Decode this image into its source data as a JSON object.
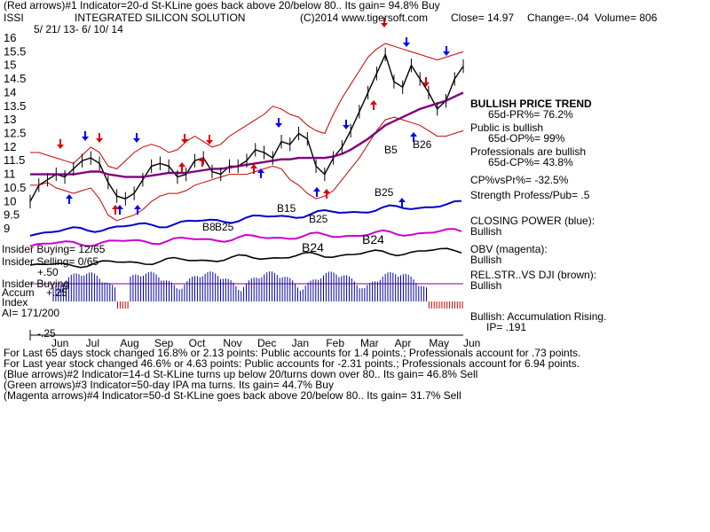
{
  "header": {
    "line1": "(Red arrows)#1 Indicator=20-d St-KLine goes back above 20/below 80.. Its gain= 94.8% Buy",
    "symbol": "ISSI",
    "company": "INTEGRATED SILICON SOLUTION",
    "copyright": "(C)2014 www.tigersoft.com",
    "close": "Close= 14.97",
    "change": "Change=-.04",
    "volume": "Volume= 806",
    "date_range": "5/ 21/ 13- 6/ 10/ 14"
  },
  "side_panel": {
    "trend_title": "BULLISH PRICE TREND",
    "pr65": "65d-PR%= 76.2%",
    "public_bullish": "Public is bullish",
    "op65": "65d-OP%= 99%",
    "pros_bullish": "Professionals are bullish",
    "cp65": "65d-CP%= 43.8%",
    "cpvspr": "CP%vsPr%= -32.5%",
    "strength": "Strength Profess/Pub= .5",
    "closing_power": "CLOSING POWER (blue):",
    "closing_power_val": "Bullish",
    "obv": "OBV (magenta):",
    "obv_val": "Bullish",
    "relstr": "REL.STR..VS DJI (brown):",
    "relstr_val": "Bullish",
    "accum": "Bullish: Accumulation Rising.",
    "ip": "IP= .191"
  },
  "left_panel": {
    "insider_buying": "Insider Buying= 12/65",
    "insider_selling": "Insider Selling= 0/65",
    "insider_buying2": "Insider Buying",
    "accum_label": "Accum",
    "index_label": "Index",
    "ai": "AI= 171/200",
    "p50": "+.50",
    "p25": "+.25",
    "m25": "-.25"
  },
  "annotations": {
    "b5": "B5",
    "b26": "B26",
    "b25a": "B25",
    "b15": "B15",
    "b25b": "B25",
    "b8": "B8",
    "b25c": "B25",
    "b24a": "B24",
    "b24b": "B24"
  },
  "footer": {
    "line1": "For Last 65 days stock changed  16.8% or  2.13 points:  Public accounts for  1.4 points.;  Professionals account for  .73 points.",
    "line2": "For Last year stock changed  46.6% or  4.63 points:  Public accounts for -2.31 points.;  Professionals account for  6.94 points.",
    "line3": "(Blue arrows)#2 Indicator=14-d St-KLine turns up below 20/turns down over 80.. Its gain= 46.8% Sell",
    "line4": "(Green arrows)#3 Indicator=50-day IPA ma turns. Its gain= 44.7% Buy",
    "line5": "(Magenta arrows)#4 Indicator=50-d St-KLine goes back above 20/below 80.. Its gain= 31.7% Sell"
  },
  "colors": {
    "price": "#000000",
    "band": "#cc0000",
    "ma": "#800080",
    "closing_power": "#0000cc",
    "obv": "#cc00cc",
    "accum_bars": "#0000aa",
    "accum_neg": "#cc0000",
    "arrow_up": "#0000ff",
    "arrow_down": "#0000ff",
    "arrow_red": "#dd0000"
  },
  "chart_data": {
    "type": "line",
    "title": "INTEGRATED SILICON SOLUTION",
    "ylim": [
      9,
      16
    ],
    "y_ticks": [
      "16",
      "15.5",
      "15",
      "14.5",
      "14",
      "13.5",
      "13",
      "12.5",
      "12",
      "11.5",
      "11",
      "10.5",
      "10",
      "9.5",
      "9"
    ],
    "x_ticks": [
      "Jun",
      "Jul",
      "Aug",
      "Sep",
      "Oct",
      "Nov",
      "Dec",
      "Jan",
      "Feb",
      "Mar",
      "Apr",
      "May",
      "Jun"
    ],
    "series": [
      {
        "name": "Close",
        "values": [
          10.0,
          10.6,
          10.8,
          11.0,
          10.9,
          11.2,
          11.5,
          11.6,
          11.4,
          10.7,
          10.2,
          10.1,
          10.3,
          10.8,
          11.3,
          11.4,
          11.3,
          10.9,
          11.0,
          11.5,
          11.6,
          11.1,
          11.0,
          11.3,
          11.3,
          11.5,
          11.9,
          11.8,
          11.6,
          12.2,
          12.1,
          12.5,
          12.3,
          11.3,
          11.0,
          11.6,
          12.0,
          12.6,
          13.3,
          14.0,
          14.7,
          15.4,
          14.4,
          14.2,
          15.0,
          14.5,
          14.0,
          13.4,
          13.7,
          14.5,
          14.97
        ]
      },
      {
        "name": "Upper Band",
        "values": [
          11.8,
          11.8,
          11.7,
          11.6,
          11.5,
          11.4,
          11.7,
          12.0,
          11.8,
          11.3,
          11.2,
          11.5,
          11.8,
          12.0,
          12.1,
          12.0,
          11.8,
          11.9,
          12.2,
          12.4,
          12.2,
          12.0,
          12.1,
          12.4,
          12.6,
          12.8,
          13.0,
          13.2,
          13.5,
          13.4,
          13.2,
          13.1,
          12.8,
          12.6,
          12.5,
          13.2,
          13.8,
          14.3,
          14.8,
          15.3,
          15.6,
          15.8,
          15.7,
          15.6,
          15.5,
          15.4,
          15.3,
          15.2,
          15.3,
          15.4,
          15.5
        ]
      },
      {
        "name": "Lower Band",
        "values": [
          10.6,
          10.6,
          10.7,
          10.5,
          10.4,
          10.3,
          10.4,
          10.5,
          10.1,
          9.5,
          9.3,
          9.4,
          9.5,
          9.7,
          10.0,
          10.2,
          10.3,
          10.3,
          10.4,
          10.6,
          10.7,
          10.8,
          10.9,
          11.0,
          11.0,
          11.0,
          11.1,
          11.2,
          11.3,
          11.2,
          10.8,
          10.6,
          10.3,
          10.1,
          10.2,
          10.4,
          10.8,
          11.2,
          11.6,
          12.1,
          12.6,
          13.0,
          13.1,
          13.0,
          12.9,
          12.8,
          12.6,
          12.4,
          12.4,
          12.5,
          12.6
        ]
      },
      {
        "name": "50-day MA",
        "values": [
          11.0,
          11.0,
          11.0,
          11.0,
          11.0,
          11.0,
          11.05,
          11.1,
          11.1,
          11.0,
          10.95,
          10.9,
          10.9,
          10.9,
          10.95,
          11.0,
          11.05,
          11.05,
          11.05,
          11.1,
          11.15,
          11.2,
          11.2,
          11.25,
          11.3,
          11.35,
          11.4,
          11.45,
          11.5,
          11.55,
          11.55,
          11.6,
          11.6,
          11.6,
          11.6,
          11.65,
          11.75,
          11.9,
          12.1,
          12.3,
          12.55,
          12.8,
          12.95,
          13.1,
          13.25,
          13.4,
          13.5,
          13.6,
          13.7,
          13.85,
          14.0
        ]
      }
    ]
  }
}
